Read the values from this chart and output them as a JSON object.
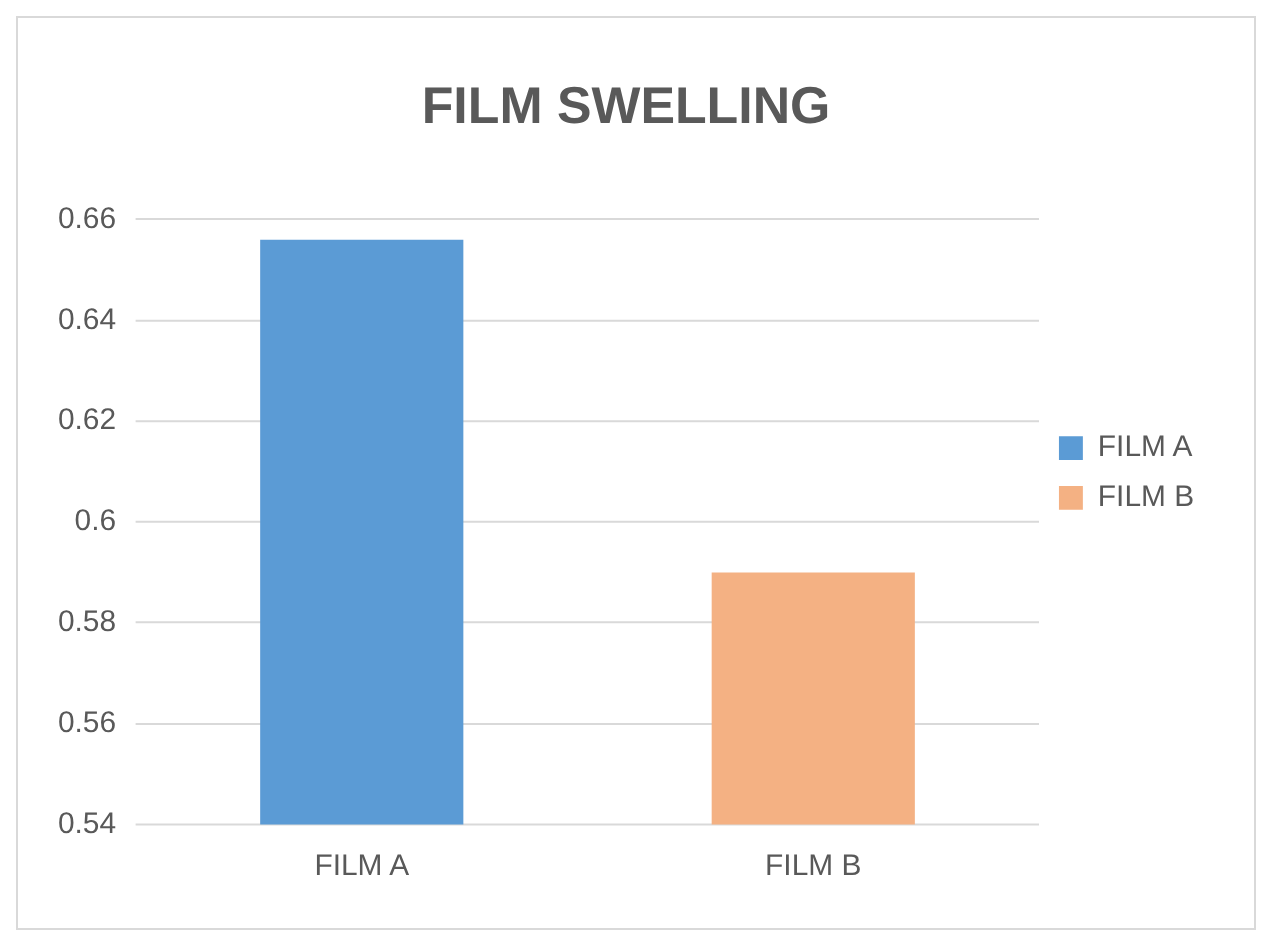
{
  "chart_data": {
    "type": "bar",
    "title": "FILM SWELLING",
    "categories": [
      "FILM A",
      "FILM B"
    ],
    "series": [
      {
        "name": "FILM A",
        "color": "#5b9bd5",
        "values": [
          0.656,
          null
        ]
      },
      {
        "name": "FILM B",
        "color": "#f4b183",
        "values": [
          null,
          0.59
        ]
      }
    ],
    "ylim": [
      0.54,
      0.66
    ],
    "yticks": [
      0.54,
      0.56,
      0.58,
      0.6,
      0.62,
      0.64,
      0.66
    ],
    "grid": "y",
    "legend": "right"
  }
}
